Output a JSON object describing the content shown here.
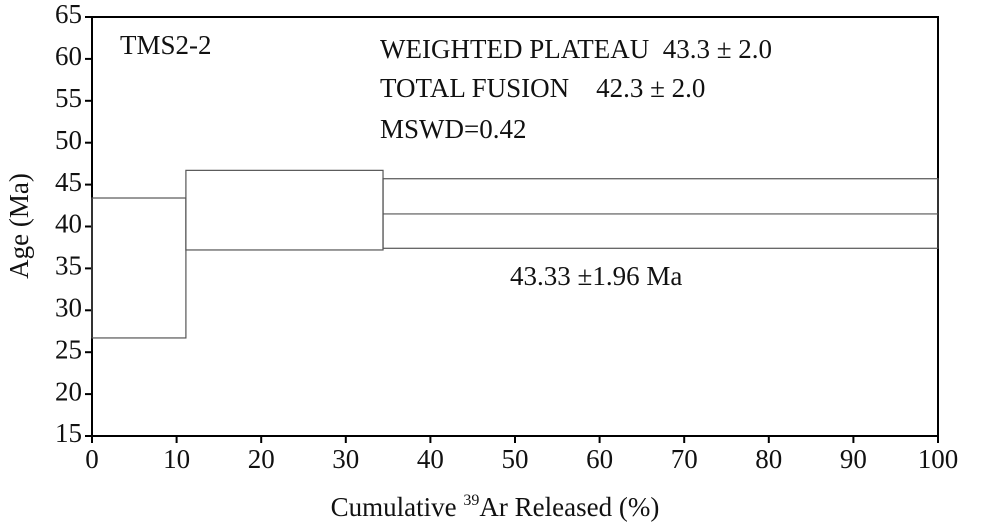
{
  "chart_data": {
    "type": "step",
    "xlabel_parts": [
      "Cumulative ",
      "39",
      "Ar Released (%)"
    ],
    "ylabel": "Age (Ma)",
    "annotations": [
      "TMS2-2",
      "WEIGHTED PLATEAU  43.3 ± 2.0",
      "TOTAL FUSION    42.3 ± 2.0",
      "MSWD=0.42",
      "43.33 ±1.96 Ma"
    ],
    "steps": [
      {
        "x": [
          0,
          11.1
        ],
        "y": [
          26.7,
          43.4
        ]
      },
      {
        "x": [
          11.1,
          34.4
        ],
        "y": [
          37.2,
          46.7
        ]
      },
      {
        "x": [
          34.4,
          100
        ],
        "y": [
          37.4,
          45.7
        ]
      }
    ],
    "lines": [
      {
        "x": [
          34.4,
          100
        ],
        "y": 41.5
      }
    ],
    "xlim": [
      0,
      100
    ],
    "xticks": [
      0,
      10,
      20,
      30,
      40,
      50,
      60,
      70,
      80,
      90,
      100
    ],
    "ylim": [
      15,
      65
    ],
    "yticks": [
      15,
      20,
      25,
      30,
      35,
      40,
      45,
      50,
      55,
      60,
      65
    ],
    "color": "#555555"
  }
}
